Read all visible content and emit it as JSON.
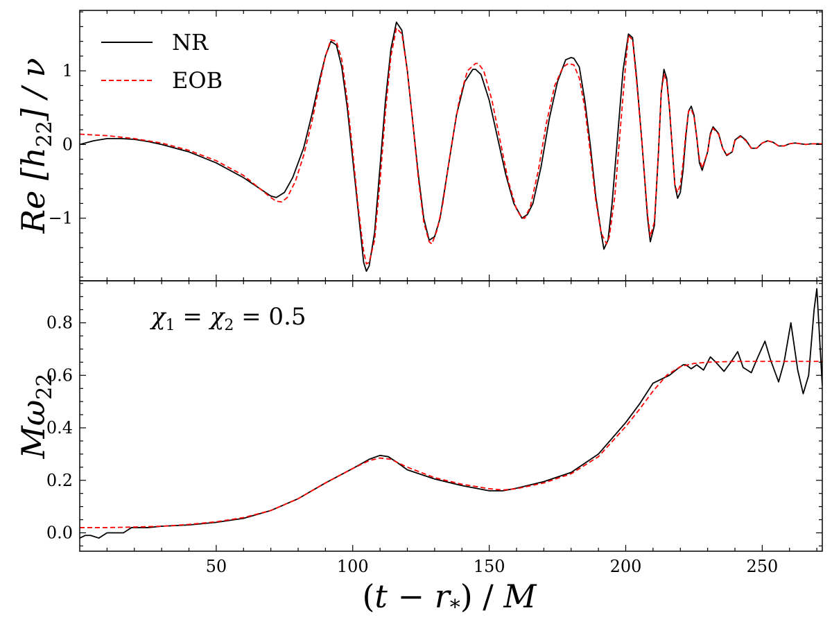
{
  "chart_data": [
    {
      "type": "line",
      "panel": "top",
      "ylabel": "Re [h22] / ν",
      "xlim": [
        0,
        272
      ],
      "ylim": [
        -1.85,
        1.82
      ],
      "yticks": [
        -1,
        0,
        1
      ],
      "ytick_labels": [
        "−1",
        "0",
        "1"
      ],
      "legend": {
        "placement": "top-left",
        "entries": [
          "NR",
          "EOB"
        ]
      },
      "colors": {
        "NR": "#000000",
        "EOB": "#ff0000"
      },
      "series": [
        {
          "name": "NR",
          "x": [
            0,
            5,
            10,
            15,
            20,
            25,
            30,
            40,
            50,
            60,
            66,
            70,
            72,
            75,
            78,
            82,
            85,
            88,
            90,
            92,
            94,
            96,
            98,
            100,
            102,
            104,
            105,
            106,
            108,
            110,
            112,
            114,
            116,
            118,
            120,
            122,
            124,
            126,
            128,
            130,
            132,
            135,
            138,
            141,
            144,
            145,
            147,
            150,
            153,
            156,
            159,
            162,
            164,
            166,
            169,
            172,
            175,
            178,
            180,
            181,
            183,
            185,
            187,
            189,
            191,
            192,
            193.5,
            195,
            197,
            199,
            201,
            202.5,
            204,
            206,
            208,
            209,
            210.5,
            212,
            213,
            214,
            215,
            216,
            218,
            219,
            220,
            221,
            222,
            223,
            224,
            225,
            226,
            227,
            228,
            230,
            231,
            232,
            234,
            235.5,
            237,
            239,
            240,
            242,
            244,
            246,
            248,
            250,
            252,
            254,
            256,
            258,
            260,
            262,
            264,
            266,
            268,
            272
          ],
          "values": [
            0.0,
            0.05,
            0.08,
            0.08,
            0.07,
            0.04,
            0.0,
            -0.1,
            -0.25,
            -0.45,
            -0.6,
            -0.7,
            -0.72,
            -0.65,
            -0.45,
            -0.05,
            0.4,
            0.9,
            1.2,
            1.4,
            1.35,
            1.05,
            0.5,
            -0.2,
            -0.9,
            -1.6,
            -1.72,
            -1.65,
            -1.2,
            -0.3,
            0.6,
            1.3,
            1.66,
            1.55,
            1.0,
            0.3,
            -0.4,
            -1.0,
            -1.3,
            -1.25,
            -1.0,
            -0.3,
            0.4,
            0.85,
            1.02,
            1.02,
            0.95,
            0.6,
            0.1,
            -0.4,
            -0.8,
            -1.0,
            -0.95,
            -0.8,
            -0.3,
            0.35,
            0.85,
            1.15,
            1.18,
            1.17,
            1.05,
            0.6,
            0.0,
            -0.7,
            -1.2,
            -1.42,
            -1.3,
            -0.8,
            0.1,
            1.0,
            1.5,
            1.45,
            0.9,
            0.0,
            -1.0,
            -1.32,
            -1.1,
            -0.1,
            0.7,
            1.02,
            0.9,
            0.5,
            -0.55,
            -0.73,
            -0.65,
            -0.35,
            0.1,
            0.45,
            0.52,
            0.4,
            0.1,
            -0.25,
            -0.35,
            -0.1,
            0.15,
            0.24,
            0.15,
            -0.05,
            -0.15,
            -0.1,
            0.06,
            0.12,
            0.06,
            -0.05,
            -0.05,
            0.02,
            0.05,
            0.03,
            -0.02,
            -0.02,
            0.01,
            0.02,
            0.01,
            0.0,
            0.01,
            0.01
          ]
        },
        {
          "name": "EOB",
          "x": [
            0,
            10,
            20,
            30,
            40,
            50,
            60,
            66,
            70,
            72,
            74,
            76,
            79,
            82,
            85,
            88,
            90,
            92,
            94,
            96,
            98,
            100,
            102,
            104,
            105,
            106,
            108,
            110,
            112,
            114,
            116,
            118,
            120,
            122,
            124,
            126,
            128,
            129,
            131,
            133,
            136,
            139,
            142,
            145,
            146,
            148,
            151,
            154,
            157,
            160,
            162,
            163,
            165,
            168,
            171,
            174,
            177,
            179,
            181,
            183,
            185,
            187,
            189,
            191,
            193,
            194,
            196,
            198,
            200,
            201,
            202.5,
            204,
            206,
            208,
            209,
            210.5,
            212,
            213,
            214,
            215,
            216,
            218,
            219,
            220,
            221,
            222,
            223,
            224,
            225,
            226,
            227,
            228,
            230,
            231,
            232,
            234,
            235.5,
            237,
            239,
            240,
            242,
            244,
            246,
            248,
            250,
            252,
            254,
            256,
            258,
            260,
            262,
            264,
            266,
            268,
            272
          ],
          "values": [
            0.14,
            0.12,
            0.08,
            0.02,
            -0.08,
            -0.22,
            -0.42,
            -0.6,
            -0.72,
            -0.77,
            -0.78,
            -0.72,
            -0.5,
            -0.15,
            0.3,
            0.85,
            1.2,
            1.42,
            1.4,
            1.15,
            0.6,
            -0.1,
            -0.85,
            -1.45,
            -1.62,
            -1.6,
            -1.3,
            -0.5,
            0.45,
            1.2,
            1.58,
            1.5,
            1.0,
            0.3,
            -0.45,
            -1.05,
            -1.32,
            -1.35,
            -1.15,
            -0.8,
            -0.05,
            0.6,
            1.0,
            1.1,
            1.1,
            1.0,
            0.6,
            0.05,
            -0.5,
            -0.88,
            -1.0,
            -1.0,
            -0.85,
            -0.35,
            0.3,
            0.8,
            1.05,
            1.1,
            1.08,
            0.9,
            0.5,
            -0.1,
            -0.75,
            -1.2,
            -1.35,
            -1.25,
            -0.7,
            0.2,
            1.1,
            1.48,
            1.42,
            0.85,
            0.0,
            -0.95,
            -1.25,
            -1.05,
            -0.1,
            0.7,
            0.95,
            0.85,
            0.5,
            -0.55,
            -0.65,
            -0.55,
            -0.25,
            0.15,
            0.45,
            0.48,
            0.38,
            0.1,
            -0.2,
            -0.32,
            -0.1,
            0.13,
            0.22,
            0.14,
            -0.05,
            -0.14,
            -0.1,
            0.05,
            0.11,
            0.05,
            -0.05,
            -0.05,
            0.02,
            0.05,
            0.03,
            -0.02,
            -0.02,
            0.01,
            0.02,
            0.01,
            0.0,
            0.01,
            0.01
          ]
        }
      ]
    },
    {
      "type": "line",
      "panel": "bottom",
      "ylabel": "Mω22",
      "xlabel": "(t − r*) / M",
      "annotation": "χ1 = χ2 = 0.5",
      "xlim": [
        0,
        272
      ],
      "ylim": [
        -0.07,
        0.96
      ],
      "xticks": [
        50,
        100,
        150,
        200,
        250
      ],
      "xtick_labels": [
        "50",
        "100",
        "150",
        "200",
        "250"
      ],
      "yticks": [
        0.0,
        0.2,
        0.4,
        0.6,
        0.8
      ],
      "ytick_labels": [
        "0.0",
        "0.2",
        "0.4",
        "0.6",
        "0.8"
      ],
      "series": [
        {
          "name": "NR",
          "x": [
            0,
            2,
            4,
            7,
            10,
            13,
            16,
            19,
            22,
            25,
            30,
            40,
            50,
            60,
            70,
            80,
            90,
            100,
            106,
            110,
            113,
            116,
            120,
            130,
            140,
            150,
            155,
            160,
            170,
            180,
            190,
            195,
            200,
            205,
            210,
            213,
            216,
            219,
            221,
            222,
            224,
            226,
            228.5,
            231,
            233,
            236,
            238.5,
            241,
            243,
            246,
            248,
            251,
            253,
            256,
            258,
            260.5,
            263,
            265,
            267,
            269,
            270,
            272
          ],
          "values": [
            -0.02,
            -0.01,
            -0.01,
            -0.02,
            0.0,
            0.0,
            0.0,
            0.02,
            0.02,
            0.02,
            0.025,
            0.03,
            0.04,
            0.055,
            0.085,
            0.13,
            0.19,
            0.245,
            0.28,
            0.295,
            0.29,
            0.27,
            0.24,
            0.205,
            0.18,
            0.16,
            0.16,
            0.17,
            0.195,
            0.23,
            0.3,
            0.36,
            0.42,
            0.49,
            0.57,
            0.585,
            0.6,
            0.625,
            0.64,
            0.64,
            0.625,
            0.64,
            0.62,
            0.67,
            0.65,
            0.615,
            0.65,
            0.69,
            0.63,
            0.61,
            0.66,
            0.73,
            0.66,
            0.575,
            0.65,
            0.8,
            0.62,
            0.53,
            0.6,
            0.85,
            0.93,
            0.56
          ]
        },
        {
          "name": "EOB",
          "x": [
            0,
            10,
            20,
            30,
            40,
            50,
            60,
            70,
            80,
            90,
            100,
            106,
            110,
            114,
            120,
            130,
            140,
            150,
            155,
            160,
            170,
            180,
            190,
            200,
            205,
            210,
            215,
            220,
            225,
            230,
            240,
            250,
            260,
            272
          ],
          "values": [
            0.02,
            0.02,
            0.022,
            0.025,
            0.032,
            0.042,
            0.058,
            0.085,
            0.13,
            0.19,
            0.245,
            0.275,
            0.285,
            0.28,
            0.25,
            0.21,
            0.185,
            0.168,
            0.163,
            0.168,
            0.19,
            0.225,
            0.29,
            0.405,
            0.47,
            0.54,
            0.6,
            0.633,
            0.645,
            0.65,
            0.653,
            0.653,
            0.653,
            0.653
          ]
        }
      ]
    }
  ]
}
